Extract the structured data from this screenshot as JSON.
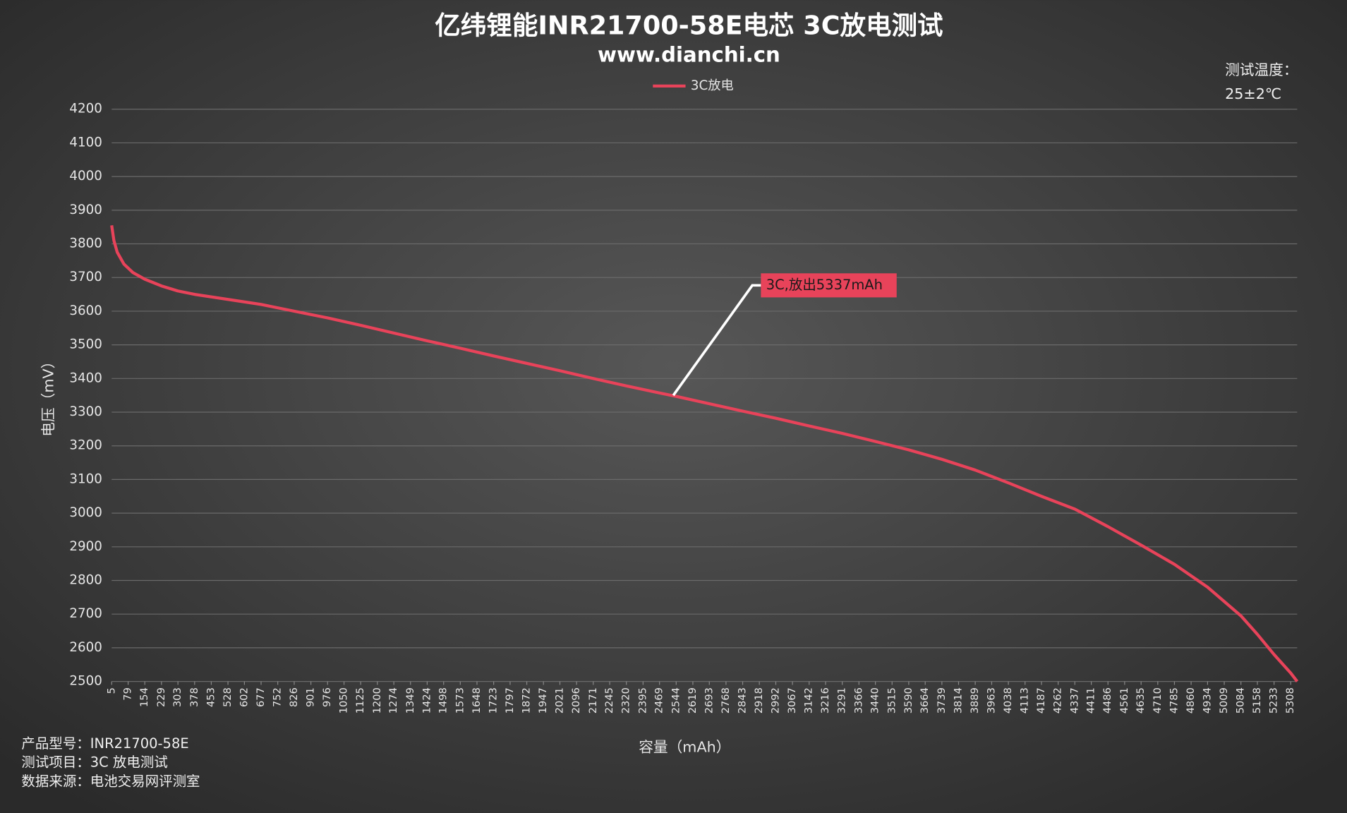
{
  "chart_data": {
    "type": "line",
    "title": "亿纬锂能INR21700-58E电芯 3C放电测试",
    "subtitle": "www.dianchi.cn",
    "x_label": "容量（mAh）",
    "y_label": "电压（mV）",
    "note_title": "测试温度：",
    "note_value": "25±2℃",
    "footer": [
      "产品型号：INR21700-58E",
      "测试项目：3C 放电测试",
      "数据来源：电池交易网评测室"
    ],
    "xlim": [
      5,
      5337
    ],
    "xticks": [
      5,
      79,
      154,
      229,
      303,
      378,
      453,
      528,
      602,
      677,
      752,
      826,
      901,
      976,
      1050,
      1125,
      1200,
      1274,
      1349,
      1424,
      1498,
      1573,
      1648,
      1723,
      1797,
      1872,
      1947,
      2021,
      2096,
      2171,
      2245,
      2320,
      2395,
      2469,
      2544,
      2619,
      2693,
      2768,
      2843,
      2918,
      2992,
      3067,
      3142,
      3216,
      3291,
      3366,
      3440,
      3515,
      3590,
      3664,
      3739,
      3814,
      3889,
      3963,
      4038,
      4113,
      4187,
      4262,
      4337,
      4411,
      4486,
      4561,
      4635,
      4710,
      4785,
      4860,
      4934,
      5009,
      5084,
      5158,
      5233,
      5308
    ],
    "ylim": [
      2500,
      4200
    ],
    "yticks": [
      2500,
      2600,
      2700,
      2800,
      2900,
      3000,
      3100,
      3200,
      3300,
      3400,
      3500,
      3600,
      3700,
      3800,
      3900,
      4000,
      4100,
      4200
    ],
    "grid": true,
    "legend": "top",
    "series": [
      {
        "name": "3C放电",
        "color": "#e8435a",
        "x": [
          5,
          15,
          30,
          60,
          100,
          154,
          229,
          303,
          378,
          528,
          677,
          826,
          976,
          1125,
          1274,
          1424,
          1573,
          1723,
          1872,
          2021,
          2171,
          2320,
          2469,
          2544,
          2693,
          2843,
          2992,
          3142,
          3291,
          3440,
          3590,
          3739,
          3889,
          4038,
          4187,
          4337,
          4486,
          4635,
          4785,
          4934,
          5084,
          5158,
          5233,
          5308,
          5337
        ],
        "values": [
          3855,
          3810,
          3775,
          3740,
          3715,
          3695,
          3675,
          3660,
          3650,
          3635,
          3620,
          3600,
          3580,
          3558,
          3535,
          3512,
          3490,
          3467,
          3445,
          3423,
          3400,
          3378,
          3357,
          3347,
          3325,
          3303,
          3282,
          3259,
          3237,
          3213,
          3188,
          3160,
          3128,
          3090,
          3050,
          3012,
          2960,
          2905,
          2848,
          2780,
          2695,
          2640,
          2580,
          2525,
          2500
        ]
      }
    ],
    "annotations": [
      {
        "text": "3C,放出5337mAh",
        "x": 2531,
        "y": 3350
      }
    ]
  }
}
